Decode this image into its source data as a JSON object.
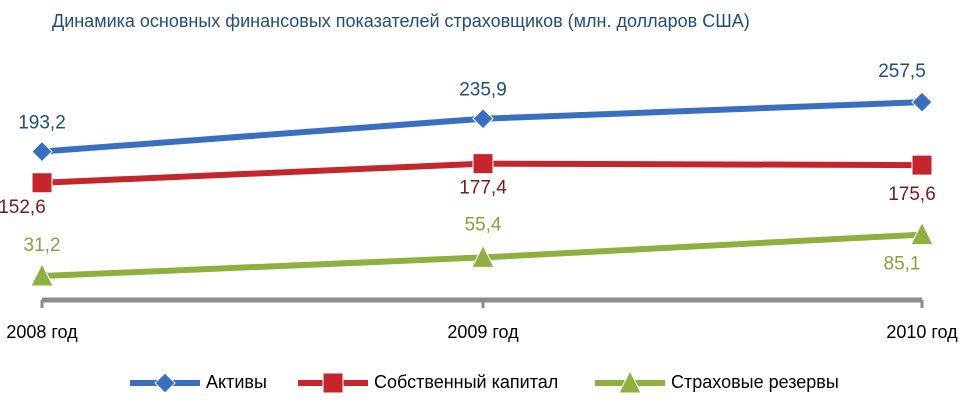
{
  "chart_data": {
    "type": "line",
    "title": "Динамика основных финансовых показателей страховщиков (млн. долларов США)",
    "categories": [
      "2008 год",
      "2009 год",
      "2010 год"
    ],
    "ylim": [
      0,
      380
    ],
    "series": [
      {
        "name": "Активы",
        "color": "#3a6fc0",
        "label_color": "#1f4e79",
        "marker": "diamond",
        "values": [
          193.2,
          235.9,
          257.5
        ],
        "value_labels": [
          "193,2",
          "235,9",
          "257,5"
        ]
      },
      {
        "name": "Собственный капитал",
        "color": "#c4262b",
        "label_color": "#7a1a1a",
        "marker": "square",
        "values": [
          152.6,
          177.4,
          175.6
        ],
        "value_labels": [
          "152,6",
          "177,4",
          "175,6"
        ]
      },
      {
        "name": "Страховые резервы",
        "color": "#8db040",
        "label_color": "#8aa13c",
        "marker": "triangle",
        "values": [
          31.2,
          55.4,
          85.1
        ],
        "value_labels": [
          "31,2",
          "55,4",
          "85,1"
        ]
      }
    ]
  }
}
